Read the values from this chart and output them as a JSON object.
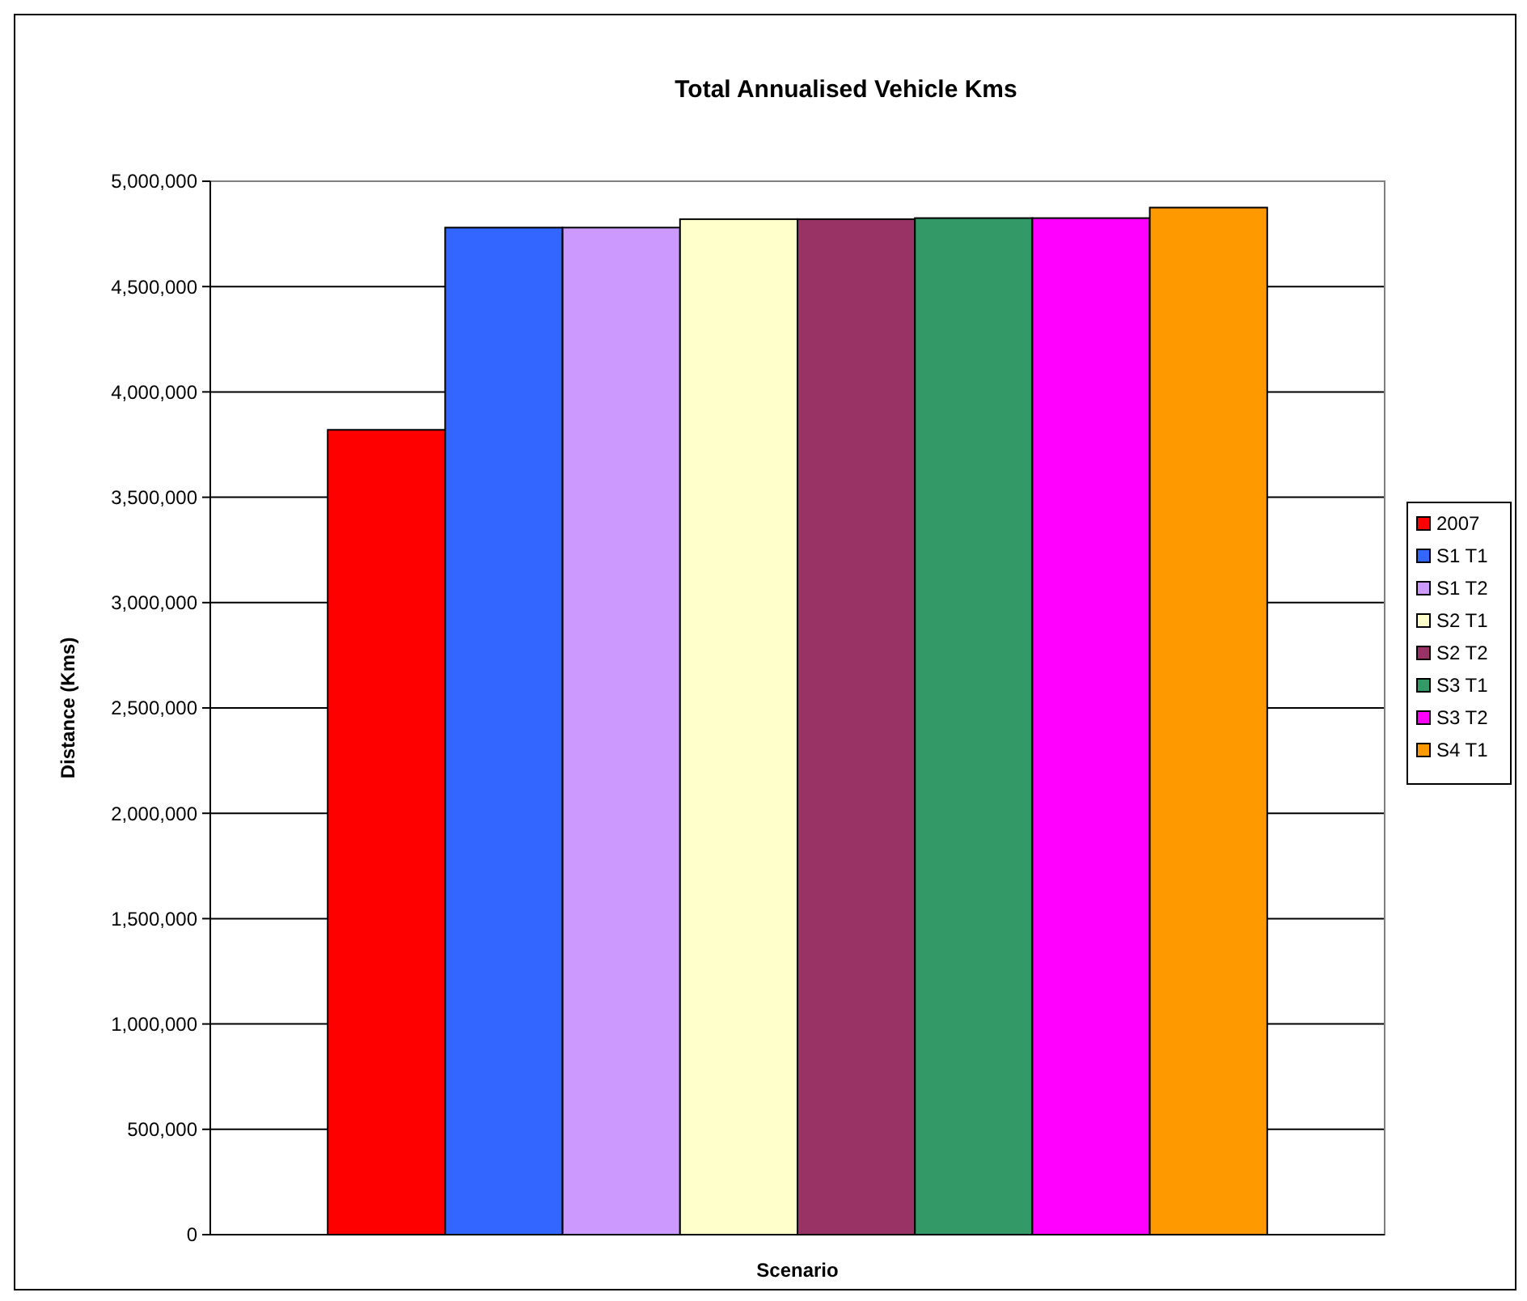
{
  "chart_data": {
    "type": "bar",
    "title": "Total Annualised Vehicle Kms",
    "xlabel": "Scenario",
    "ylabel": "Distance (Kms)",
    "categories": [
      null
    ],
    "series": [
      {
        "name": "2007",
        "color": "#ff0000",
        "values": [
          3820000
        ]
      },
      {
        "name": "S1 T1",
        "color": "#3366ff",
        "values": [
          4780000
        ]
      },
      {
        "name": "S1 T2",
        "color": "#cc99ff",
        "values": [
          4780000
        ]
      },
      {
        "name": "S2 T1",
        "color": "#ffffcc",
        "values": [
          4820000
        ]
      },
      {
        "name": "S2 T2",
        "color": "#993366",
        "values": [
          4820000
        ]
      },
      {
        "name": "S3 T1",
        "color": "#339966",
        "values": [
          4825000
        ]
      },
      {
        "name": "S3 T2",
        "color": "#ff00ff",
        "values": [
          4825000
        ]
      },
      {
        "name": "S4 T1",
        "color": "#ff9900",
        "values": [
          4875000
        ]
      }
    ],
    "ylim": [
      0,
      5000000
    ],
    "yticks": [
      {
        "value": 0,
        "label": "0"
      },
      {
        "value": 500000,
        "label": "500,000"
      },
      {
        "value": 1000000,
        "label": "1,000,000"
      },
      {
        "value": 1500000,
        "label": "1,500,000"
      },
      {
        "value": 2000000,
        "label": "2,000,000"
      },
      {
        "value": 2500000,
        "label": "2,500,000"
      },
      {
        "value": 3000000,
        "label": "3,000,000"
      },
      {
        "value": 3500000,
        "label": "3,500,000"
      },
      {
        "value": 4000000,
        "label": "4,000,000"
      },
      {
        "value": 4500000,
        "label": "4,500,000"
      },
      {
        "value": 5000000,
        "label": "5,000,000"
      }
    ],
    "grid": "y",
    "legend": "right"
  }
}
